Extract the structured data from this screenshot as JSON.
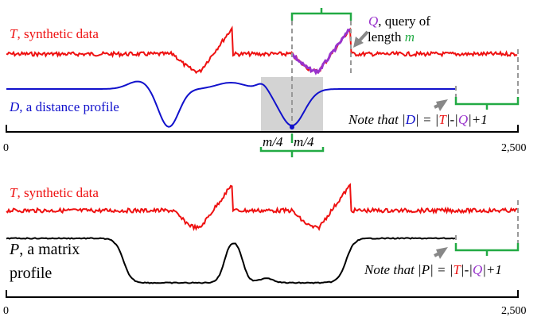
{
  "colors": {
    "red": "#ee1111",
    "blue": "#1111cc",
    "purple": "#9933cc",
    "green": "#22aa44",
    "gray": "#999999",
    "shade": "#d3d3d3",
    "black": "#000000"
  },
  "top": {
    "t_symbol": "T",
    "t_caption": ", synthetic data",
    "q_symbol": "Q",
    "q_caption_line1": ", query of",
    "q_caption_line2": "length ",
    "q_length_symbol": "m",
    "d_symbol": "D",
    "d_caption": ", a distance profile",
    "note_prefix": "Note that |",
    "note_d": "D",
    "note_eq": "| = |",
    "note_t": "T",
    "note_mid": "|-|",
    "note_q": "Q",
    "note_suffix": "|+1",
    "window_left_label": "m/4",
    "window_right_label": "m/4",
    "axis_start": "0",
    "axis_end": "2,500"
  },
  "bottom": {
    "t_symbol": "T",
    "t_caption": ", synthetic data",
    "p_symbol": "P",
    "p_caption_line1": ", a matrix",
    "p_caption_line2": "profile",
    "note_prefix": "Note that |",
    "note_p": "P",
    "note_eq": "| = |",
    "note_t": "T",
    "note_mid": "|-|",
    "note_q": "Q",
    "note_suffix": "|+1",
    "axis_start": "0",
    "axis_end": "2,500"
  }
}
